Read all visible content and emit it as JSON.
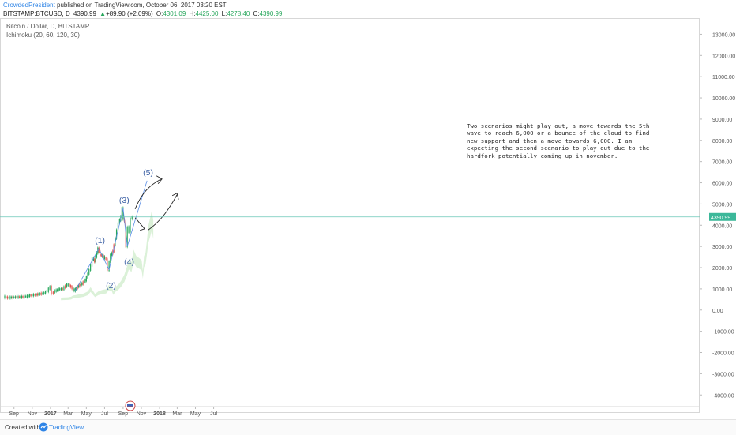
{
  "header": {
    "author": "CrowdedPresident",
    "published": " published on TradingView.com, October 06, 2017 03:20 EST",
    "symbol": "BITSTAMP:BTCUSD, D",
    "price": "4390.99",
    "change_arrow": "▲",
    "change": "+89.90 (+2.09%)",
    "o_label": "O:",
    "o": "4301.09",
    "h_label": "H:",
    "h": "4425.00",
    "l_label": "L:",
    "l": "4278.40",
    "c_label": "C:",
    "c": "4390.99"
  },
  "legend": {
    "series": "Bitcoin / Dollar, D, BITSTAMP",
    "indicator": "Ichimoku (20, 60, 120, 30)"
  },
  "annotation": {
    "text": "Two scenarios might play out, a move towards the 5th wave to reach 6,000 or a bounce of the cloud to find new support and then a move towards 6,000. I am expecting the second scenario to play out due to the hardfork potentially coming up  in november."
  },
  "price_label": "4390.99",
  "footer": {
    "created": "Created with",
    "brand": "TradingView"
  },
  "colors": {
    "up": "#26a65b",
    "down": "#e5524b",
    "cloud": "#d7efd4",
    "wave_line": "#5b8ee6",
    "price_line": "#69c6b6",
    "label_bg": "#3cb89a",
    "author": "#2e84e6"
  },
  "chart_data": {
    "type": "line",
    "title": "Bitcoin / Dollar, D, BITSTAMP",
    "x_ticks": [
      "Sep",
      "Nov",
      "2017",
      "Mar",
      "May",
      "Jul",
      "Sep",
      "Nov",
      "2018",
      "Mar",
      "May",
      "Jul"
    ],
    "y_ticks": [
      13000,
      12000,
      11000,
      10000,
      9000,
      8000,
      7000,
      6000,
      5000,
      4000,
      3000,
      2000,
      1000,
      0,
      -1000,
      -2000,
      -3000,
      -4000
    ],
    "y_tick_labels": [
      "13000.00",
      "12000.00",
      "11000.00",
      "10000.00",
      "9000.00",
      "8000.00",
      "7000.00",
      "6000.00",
      "5000.00",
      "4000.00",
      "3000.00",
      "2000.00",
      "1000.00",
      "0.00",
      "-1000.00",
      "-2000.00",
      "-3000.00",
      "-4000.00"
    ],
    "ylim": [
      -4400,
      13500
    ],
    "series": [
      {
        "values": [
          [
            "2016-08-01",
            620
          ],
          [
            "2016-08-15",
            580
          ],
          [
            "2016-09-01",
            600
          ],
          [
            "2016-09-15",
            610
          ],
          [
            "2016-10-01",
            615
          ],
          [
            "2016-10-15",
            640
          ],
          [
            "2016-11-01",
            700
          ],
          [
            "2016-11-15",
            720
          ],
          [
            "2016-12-01",
            760
          ],
          [
            "2016-12-15",
            800
          ],
          [
            "2016-12-25",
            900
          ],
          [
            "2017-01-04",
            1100
          ],
          [
            "2017-01-10",
            780
          ],
          [
            "2017-01-20",
            900
          ],
          [
            "2017-02-01",
            980
          ],
          [
            "2017-02-15",
            1000
          ],
          [
            "2017-03-01",
            1200
          ],
          [
            "2017-03-10",
            1150
          ],
          [
            "2017-03-25",
            920
          ],
          [
            "2017-04-05",
            1100
          ],
          [
            "2017-04-20",
            1250
          ],
          [
            "2017-05-01",
            1400
          ],
          [
            "2017-05-10",
            1700
          ],
          [
            "2017-05-20",
            2100
          ],
          [
            "2017-05-25",
            2450
          ],
          [
            "2017-06-01",
            2300
          ],
          [
            "2017-06-12",
            2900
          ],
          [
            "2017-06-20",
            2600
          ],
          [
            "2017-07-01",
            2500
          ],
          [
            "2017-07-10",
            2400
          ],
          [
            "2017-07-16",
            1900
          ],
          [
            "2017-07-25",
            2600
          ],
          [
            "2017-08-01",
            2750
          ],
          [
            "2017-08-10",
            3400
          ],
          [
            "2017-08-20",
            4100
          ],
          [
            "2017-08-28",
            4400
          ],
          [
            "2017-09-01",
            4800
          ],
          [
            "2017-09-05",
            4300
          ],
          [
            "2017-09-10",
            4200
          ],
          [
            "2017-09-15",
            3000
          ],
          [
            "2017-09-20",
            3900
          ],
          [
            "2017-09-25",
            3700
          ],
          [
            "2017-10-01",
            4300
          ],
          [
            "2017-10-06",
            4390.99
          ]
        ]
      }
    ],
    "annotations": [
      {
        "label": "(1)",
        "date": "2017-06-12",
        "value": 2900
      },
      {
        "label": "(2)",
        "date": "2017-07-16",
        "value": 1900
      },
      {
        "label": "(3)",
        "date": "2017-09-01",
        "value": 4800
      },
      {
        "label": "(4)",
        "date": "2017-09-15",
        "value": 3000
      },
      {
        "label": "(5)",
        "date": "2017-11-20",
        "value": 6100
      }
    ],
    "current_price": 4390.99,
    "grid": false,
    "legend_position": "top-left"
  }
}
